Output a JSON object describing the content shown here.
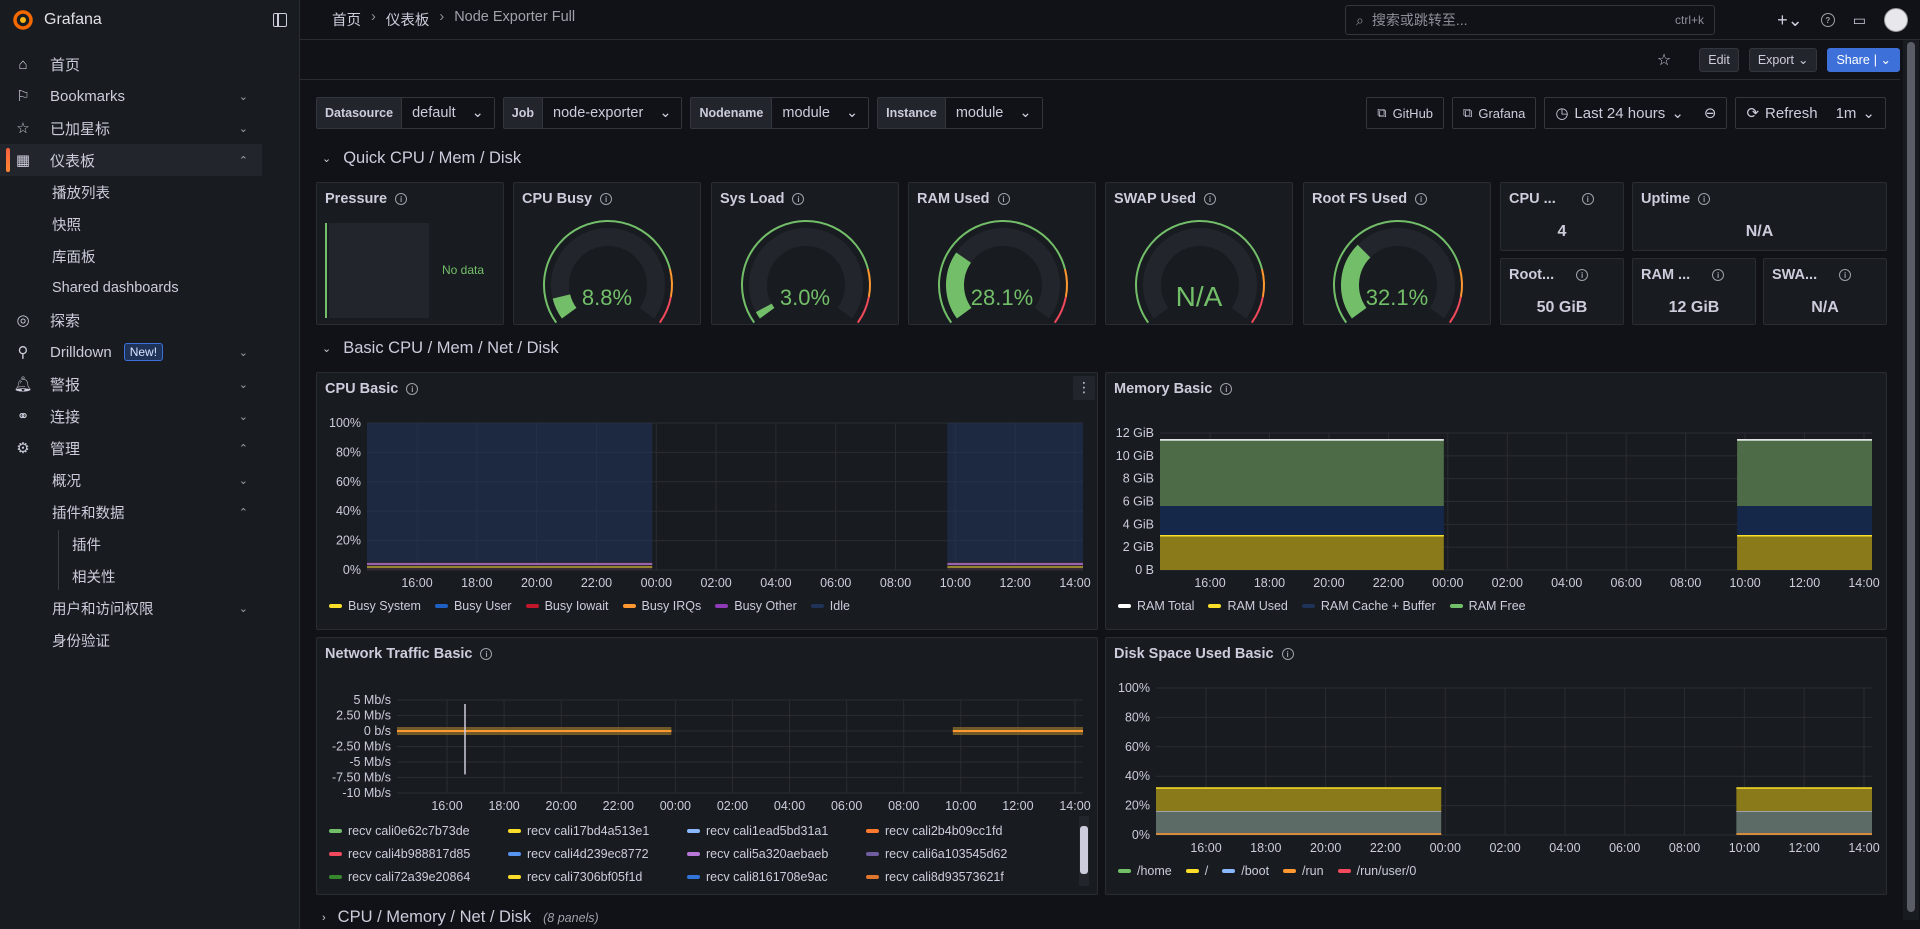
{
  "app": {
    "name": "Grafana"
  },
  "sidebar": {
    "items": [
      {
        "label": "首页"
      },
      {
        "label": "Bookmarks"
      },
      {
        "label": "已加星标"
      },
      {
        "label": "仪表板"
      },
      {
        "label": "播放列表"
      },
      {
        "label": "快照"
      },
      {
        "label": "库面板"
      },
      {
        "label": "Shared dashboards"
      },
      {
        "label": "探索"
      },
      {
        "label": "Drilldown",
        "badge": "New!"
      },
      {
        "label": "警报"
      },
      {
        "label": "连接"
      },
      {
        "label": "管理"
      },
      {
        "label": "概况"
      },
      {
        "label": "插件和数据"
      },
      {
        "label": "插件"
      },
      {
        "label": "相关性"
      },
      {
        "label": "用户和访问权限"
      },
      {
        "label": "身份验证"
      }
    ]
  },
  "breadcrumb": {
    "home": "首页",
    "dashboards": "仪表板",
    "current": "Node Exporter Full"
  },
  "search": {
    "placeholder": "搜索或跳转至...",
    "shortcut": "ctrl+k"
  },
  "toolbar": {
    "edit": "Edit",
    "export": "Export",
    "share": "Share"
  },
  "variables": [
    {
      "label": "Datasource",
      "value": "default"
    },
    {
      "label": "Job",
      "value": "node-exporter"
    },
    {
      "label": "Nodename",
      "value": "module"
    },
    {
      "label": "Instance",
      "value": "module"
    }
  ],
  "links": {
    "github": "GitHub",
    "grafana": "Grafana"
  },
  "timepicker": {
    "range": "Last 24 hours",
    "refresh": "Refresh",
    "interval": "1m"
  },
  "rows": {
    "quick": "Quick CPU / Mem / Disk",
    "basic": "Basic CPU / Mem / Net / Disk",
    "cpu_mem": "CPU / Memory / Net / Disk",
    "cpu_mem_count": "(8 panels)"
  },
  "quick_panels": {
    "pressure": {
      "title": "Pressure",
      "nodata": "No data"
    },
    "cpu_busy": {
      "title": "CPU Busy",
      "value": "8.8%",
      "fraction": 0.088
    },
    "sys_load": {
      "title": "Sys Load",
      "value": "3.0%",
      "fraction": 0.03
    },
    "ram_used": {
      "title": "RAM Used",
      "value": "28.1%",
      "fraction": 0.281
    },
    "swap_used": {
      "title": "SWAP Used",
      "value": "N/A"
    },
    "root_fs": {
      "title": "Root FS Used",
      "value": "32.1%",
      "fraction": 0.321
    },
    "cpu_cores": {
      "title": "CPU ...",
      "value": "4"
    },
    "uptime": {
      "title": "Uptime",
      "value": "N/A"
    },
    "rootfs_total": {
      "title": "Root...",
      "value": "50 GiB"
    },
    "ram_total": {
      "title": "RAM ...",
      "value": "12 GiB"
    },
    "swap_total": {
      "title": "SWA...",
      "value": "N/A"
    }
  },
  "colors": {
    "green": "#73bf69",
    "yellow": "#fade2a",
    "red": "#f2495c",
    "orange": "#ff9830",
    "blue": "#5794f2",
    "purple": "#b877d9",
    "accent": "#3d71d9"
  },
  "chart_data": [
    {
      "type": "area",
      "title": "CPU Basic",
      "y_ticks": [
        "100%",
        "80%",
        "60%",
        "40%",
        "20%",
        "0%"
      ],
      "x_ticks": [
        "16:00",
        "18:00",
        "20:00",
        "22:00",
        "00:00",
        "02:00",
        "04:00",
        "06:00",
        "08:00",
        "10:00",
        "12:00",
        "14:00"
      ],
      "series": [
        {
          "name": "Busy System",
          "color": "#fade2a"
        },
        {
          "name": "Busy User",
          "color": "#1f60c4"
        },
        {
          "name": "Busy Iowait",
          "color": "#c4162a"
        },
        {
          "name": "Busy IRQs",
          "color": "#ff9830"
        },
        {
          "name": "Busy Other",
          "color": "#8f3bb8"
        },
        {
          "name": "Idle",
          "color": "#1f3359"
        }
      ]
    },
    {
      "type": "area",
      "title": "Memory Basic",
      "y_ticks": [
        "12 GiB",
        "10 GiB",
        "8 GiB",
        "6 GiB",
        "4 GiB",
        "2 GiB",
        "0 B"
      ],
      "x_ticks": [
        "16:00",
        "18:00",
        "20:00",
        "22:00",
        "00:00",
        "02:00",
        "04:00",
        "06:00",
        "08:00",
        "10:00",
        "12:00",
        "14:00"
      ],
      "series": [
        {
          "name": "RAM Total",
          "color": "#ffffff"
        },
        {
          "name": "RAM Used",
          "color": "#fade2a"
        },
        {
          "name": "RAM Cache + Buffer",
          "color": "#1f3359"
        },
        {
          "name": "RAM Free",
          "color": "#73bf69"
        }
      ]
    },
    {
      "type": "line",
      "title": "Network Traffic Basic",
      "y_ticks": [
        "5 Mb/s",
        "2.50 Mb/s",
        "0 b/s",
        "-2.50 Mb/s",
        "-5 Mb/s",
        "-7.50 Mb/s",
        "-10 Mb/s"
      ],
      "x_ticks": [
        "16:00",
        "18:00",
        "20:00",
        "22:00",
        "00:00",
        "02:00",
        "04:00",
        "06:00",
        "08:00",
        "10:00",
        "12:00",
        "14:00"
      ],
      "series": [
        {
          "name": "recv cali0e62c7b73de",
          "color": "#73bf69"
        },
        {
          "name": "recv cali17bd4a513e1",
          "color": "#fade2a"
        },
        {
          "name": "recv cali1ead5bd31a1",
          "color": "#8ab8ff"
        },
        {
          "name": "recv cali2b4b09cc1fd",
          "color": "#ff7a2e"
        },
        {
          "name": "recv cali4b988817d85",
          "color": "#f2495c"
        },
        {
          "name": "recv cali4d239ec8772",
          "color": "#5794f2"
        },
        {
          "name": "recv cali5a320aebaeb",
          "color": "#b877d9"
        },
        {
          "name": "recv cali6a103545d62",
          "color": "#705da0"
        },
        {
          "name": "recv cali72a39e20864",
          "color": "#37872d"
        },
        {
          "name": "recv cali7306bf05f1d",
          "color": "#fade2a"
        },
        {
          "name": "recv cali8161708e9ac",
          "color": "#3274d9"
        },
        {
          "name": "recv cali8d93573621f",
          "color": "#e0752d"
        }
      ]
    },
    {
      "type": "area",
      "title": "Disk Space Used Basic",
      "y_ticks": [
        "100%",
        "80%",
        "60%",
        "40%",
        "20%",
        "0%"
      ],
      "x_ticks": [
        "16:00",
        "18:00",
        "20:00",
        "22:00",
        "00:00",
        "02:00",
        "04:00",
        "06:00",
        "08:00",
        "10:00",
        "12:00",
        "14:00"
      ],
      "series": [
        {
          "name": "/home",
          "color": "#73bf69"
        },
        {
          "name": "/",
          "color": "#fade2a"
        },
        {
          "name": "/boot",
          "color": "#8ab8ff"
        },
        {
          "name": "/run",
          "color": "#ff9830"
        },
        {
          "name": "/run/user/0",
          "color": "#f2495c"
        }
      ]
    }
  ]
}
